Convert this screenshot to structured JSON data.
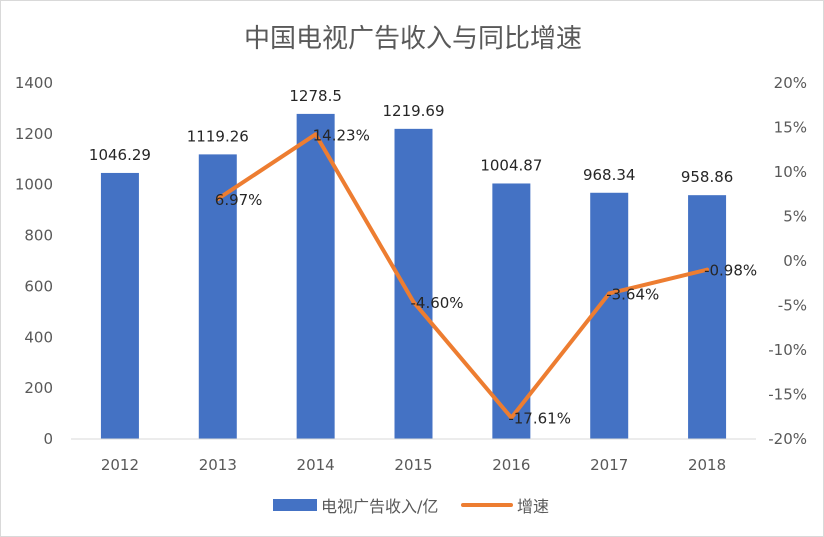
{
  "chart_data": {
    "type": "bar",
    "title": "中国电视广告收入与同比增速",
    "categories": [
      "2012",
      "2013",
      "2014",
      "2015",
      "2016",
      "2017",
      "2018"
    ],
    "series": [
      {
        "name": "电视广告收入/亿",
        "type": "bar",
        "axis": "left",
        "color": "#4472C4",
        "values": [
          1046.29,
          1119.26,
          1278.5,
          1219.69,
          1004.87,
          968.34,
          958.86
        ],
        "labels": [
          "1046.29",
          "1119.26",
          "1278.5",
          "1219.69",
          "1004.87",
          "968.34",
          "958.86"
        ]
      },
      {
        "name": "增速",
        "type": "line",
        "axis": "right",
        "color": "#ED7D31",
        "values": [
          null,
          6.97,
          14.23,
          -4.6,
          -17.61,
          -3.64,
          -0.98
        ],
        "labels": [
          "",
          "6.97%",
          "14.23%",
          "-4.60%",
          "-17.61%",
          "-3.64%",
          "-0.98%"
        ]
      }
    ],
    "ylim": [
      0,
      1400
    ],
    "yticks": [
      "0",
      "200",
      "400",
      "600",
      "800",
      "1000",
      "1200",
      "1400"
    ],
    "y2lim": [
      -20,
      20
    ],
    "y2ticks": [
      "-20%",
      "-15%",
      "-10%",
      "-5%",
      "0%",
      "5%",
      "10%",
      "15%",
      "20%"
    ],
    "legend_position": "bottom",
    "grid": false
  }
}
